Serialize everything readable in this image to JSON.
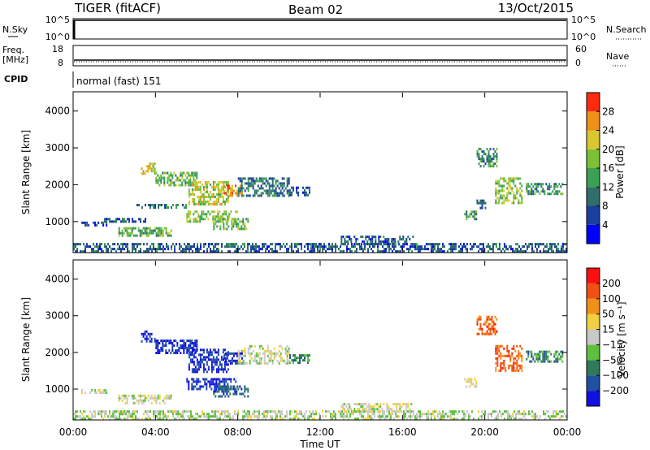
{
  "header": {
    "radar_title": "TIGER (fitACF)",
    "beam_label": "Beam 02",
    "date_label": "13/Oct/2015"
  },
  "panels": {
    "nsky": {
      "label": "N.Sky",
      "right_label": "N.Search",
      "top_tick": "10^5",
      "bottom_tick": "10^0"
    },
    "freq": {
      "label_line1": "Freq.",
      "label_line2": "[MHz]",
      "ticks": [
        "18",
        "8"
      ],
      "right_label": "Nave",
      "right_ticks": [
        "60",
        "0"
      ]
    },
    "cpid": {
      "label": "CPID",
      "value": "normal (fast) 151"
    }
  },
  "x_axis": {
    "label": "Time UT",
    "ticks": [
      "00:00",
      "04:00",
      "08:00",
      "12:00",
      "16:00",
      "20:00",
      "00:00"
    ]
  },
  "power_panel": {
    "ylabel": "Slant Range [km]",
    "yticks": [
      "4000",
      "3000",
      "2000",
      "1000"
    ],
    "colorbar_label": "Power [dB]",
    "colorbar_ticks": [
      "28",
      "24",
      "20",
      "16",
      "12",
      "8",
      "4"
    ],
    "colors": [
      "#0000ff",
      "#1a3fa0",
      "#2f6e6a",
      "#3aa055",
      "#7cc035",
      "#d8c830",
      "#f09018",
      "#ff2a10"
    ]
  },
  "velocity_panel": {
    "ylabel": "Slant Range [km]",
    "yticks": [
      "4000",
      "3000",
      "2000",
      "1000"
    ],
    "colorbar_label": "Velocity [m s⁻¹]",
    "colorbar_ticks": [
      "200",
      "100",
      "50",
      "15",
      "−15",
      "−50",
      "−100",
      "−200"
    ],
    "colors": [
      "#1010e0",
      "#2050a0",
      "#2e7a5a",
      "#5fc040",
      "#c8c8c8",
      "#f0d040",
      "#f09018",
      "#f05010",
      "#ff1010"
    ]
  },
  "chart_data": {
    "type": "heatmap",
    "x_range_hours": [
      0,
      24
    ],
    "y_range_km": [
      180,
      4500
    ],
    "power_regions": [
      {
        "t0": 0.0,
        "t1": 24.0,
        "r0": 180,
        "r1": 420,
        "value": 8
      },
      {
        "t0": 0.4,
        "t1": 1.6,
        "r0": 880,
        "r1": 1000,
        "value": 6
      },
      {
        "t0": 2.2,
        "t1": 4.8,
        "r0": 650,
        "r1": 850,
        "value": 16
      },
      {
        "t0": 3.3,
        "t1": 4.0,
        "r0": 2300,
        "r1": 2600,
        "value": 20
      },
      {
        "t0": 4.0,
        "t1": 6.0,
        "r0": 2000,
        "r1": 2350,
        "value": 16
      },
      {
        "t0": 5.6,
        "t1": 7.5,
        "r0": 1500,
        "r1": 2100,
        "value": 20
      },
      {
        "t0": 7.3,
        "t1": 8.2,
        "r0": 1700,
        "r1": 2000,
        "value": 26
      },
      {
        "t0": 5.5,
        "t1": 8.0,
        "r0": 1000,
        "r1": 1300,
        "value": 18
      },
      {
        "t0": 6.8,
        "t1": 8.5,
        "r0": 800,
        "r1": 1100,
        "value": 16
      },
      {
        "t0": 8.0,
        "t1": 10.5,
        "r0": 1700,
        "r1": 2200,
        "value": 10
      },
      {
        "t0": 10.5,
        "t1": 11.5,
        "r0": 1700,
        "r1": 1950,
        "value": 8
      },
      {
        "t0": 3.0,
        "t1": 5.6,
        "r0": 1380,
        "r1": 1480,
        "value": 10
      },
      {
        "t0": 1.5,
        "t1": 3.5,
        "r0": 1000,
        "r1": 1100,
        "value": 8
      },
      {
        "t0": 13.0,
        "t1": 16.5,
        "r0": 420,
        "r1": 620,
        "value": 8
      },
      {
        "t0": 19.0,
        "t1": 19.6,
        "r0": 1100,
        "r1": 1300,
        "value": 14
      },
      {
        "t0": 19.6,
        "t1": 20.0,
        "r0": 1400,
        "r1": 1600,
        "value": 10
      },
      {
        "t0": 19.6,
        "t1": 20.6,
        "r0": 2500,
        "r1": 3000,
        "value": 12
      },
      {
        "t0": 20.5,
        "t1": 21.8,
        "r0": 1500,
        "r1": 2200,
        "value": 18
      },
      {
        "t0": 22.0,
        "t1": 23.8,
        "r0": 1750,
        "r1": 2050,
        "value": 12
      }
    ],
    "velocity_regions": [
      {
        "t0": 0.0,
        "t1": 24.0,
        "r0": 180,
        "r1": 420,
        "value": -15
      },
      {
        "t0": 0.4,
        "t1": 1.6,
        "r0": 880,
        "r1": 1000,
        "value": 0
      },
      {
        "t0": 2.2,
        "t1": 4.8,
        "r0": 650,
        "r1": 850,
        "value": 0
      },
      {
        "t0": 3.3,
        "t1": 4.0,
        "r0": 2300,
        "r1": 2600,
        "value": -200
      },
      {
        "t0": 4.0,
        "t1": 6.0,
        "r0": 2000,
        "r1": 2350,
        "value": -200
      },
      {
        "t0": 5.6,
        "t1": 7.5,
        "r0": 1500,
        "r1": 2100,
        "value": -200
      },
      {
        "t0": 7.3,
        "t1": 8.2,
        "r0": 1700,
        "r1": 2000,
        "value": -200
      },
      {
        "t0": 5.5,
        "t1": 8.0,
        "r0": 1000,
        "r1": 1300,
        "value": -200
      },
      {
        "t0": 6.8,
        "t1": 8.5,
        "r0": 800,
        "r1": 1100,
        "value": -150
      },
      {
        "t0": 8.0,
        "t1": 10.5,
        "r0": 1700,
        "r1": 2200,
        "value": 0
      },
      {
        "t0": 10.5,
        "t1": 11.5,
        "r0": 1700,
        "r1": 1950,
        "value": -100
      },
      {
        "t0": 13.0,
        "t1": 16.5,
        "r0": 420,
        "r1": 620,
        "value": 15
      },
      {
        "t0": 19.0,
        "t1": 19.6,
        "r0": 1100,
        "r1": 1300,
        "value": 30
      },
      {
        "t0": 19.6,
        "t1": 20.6,
        "r0": 2500,
        "r1": 3000,
        "value": 150
      },
      {
        "t0": 20.5,
        "t1": 21.8,
        "r0": 1500,
        "r1": 2200,
        "value": 150
      },
      {
        "t0": 22.0,
        "t1": 23.8,
        "r0": 1750,
        "r1": 2050,
        "value": -100
      }
    ]
  }
}
